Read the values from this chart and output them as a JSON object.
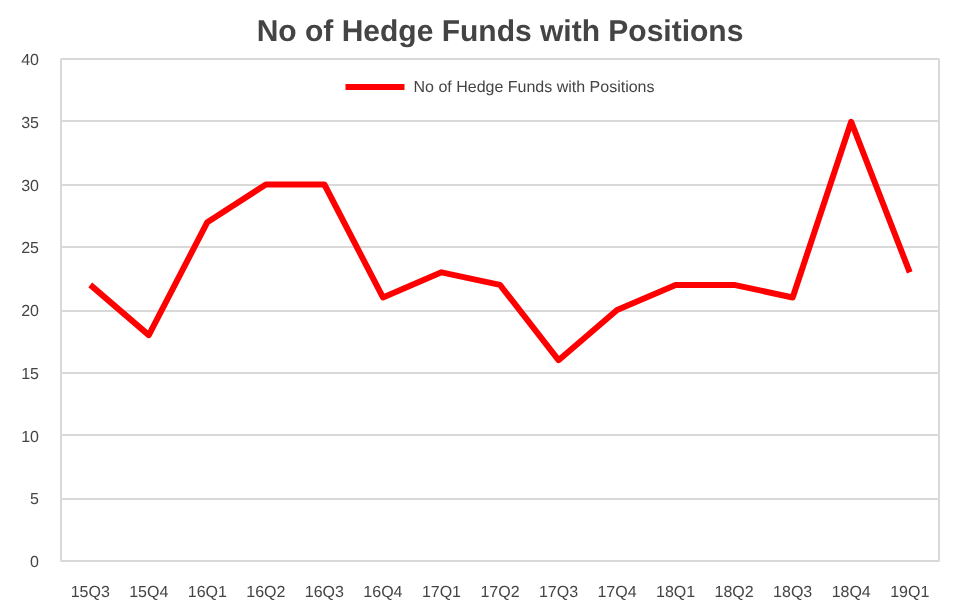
{
  "chart_data": {
    "type": "line",
    "title": "No of Hedge Funds with Positions",
    "categories": [
      "15Q3",
      "15Q4",
      "16Q1",
      "16Q2",
      "16Q3",
      "16Q4",
      "17Q1",
      "17Q2",
      "17Q3",
      "17Q4",
      "18Q1",
      "18Q2",
      "18Q3",
      "18Q4",
      "19Q1"
    ],
    "series": [
      {
        "name": "No of Hedge Funds with Positions",
        "color": "#ff0000",
        "values": [
          22,
          18,
          27,
          30,
          30,
          21,
          23,
          22,
          16,
          20,
          22,
          22,
          21,
          35,
          23
        ]
      }
    ],
    "ylim": [
      0,
      40
    ],
    "yticks": [
      0,
      5,
      10,
      15,
      20,
      25,
      30,
      35,
      40
    ],
    "grid": "y",
    "legend": "top",
    "marker": "none",
    "line_style": "solid"
  }
}
